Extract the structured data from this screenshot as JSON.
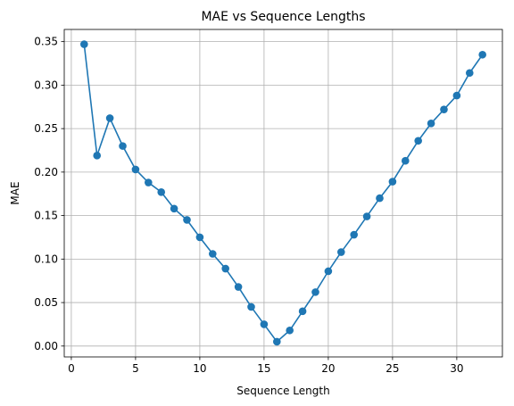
{
  "chart_data": {
    "type": "line",
    "title": "MAE vs Sequence Lengths",
    "xlabel": "Sequence Length",
    "ylabel": "MAE",
    "xlim": [
      -0.55,
      33.55
    ],
    "ylim": [
      -0.0125,
      0.364
    ],
    "xticks": [
      0,
      5,
      10,
      15,
      20,
      25,
      30
    ],
    "yticks": [
      0.0,
      0.05,
      0.1,
      0.15,
      0.2,
      0.25,
      0.3,
      0.35
    ],
    "ytick_labels": [
      "0.00",
      "0.05",
      "0.10",
      "0.15",
      "0.20",
      "0.25",
      "0.30",
      "0.35"
    ],
    "grid": true,
    "marker": "circle",
    "color": "#1f77b4",
    "x": [
      1,
      2,
      3,
      4,
      5,
      6,
      7,
      8,
      9,
      10,
      11,
      12,
      13,
      14,
      15,
      16,
      17,
      18,
      19,
      20,
      21,
      22,
      23,
      24,
      25,
      26,
      27,
      28,
      29,
      30,
      31,
      32
    ],
    "values": [
      0.347,
      0.219,
      0.262,
      0.23,
      0.203,
      0.188,
      0.177,
      0.158,
      0.145,
      0.125,
      0.106,
      0.089,
      0.068,
      0.045,
      0.025,
      0.005,
      0.018,
      0.04,
      0.062,
      0.086,
      0.108,
      0.128,
      0.149,
      0.17,
      0.189,
      0.213,
      0.236,
      0.256,
      0.272,
      0.288,
      0.314,
      0.335
    ]
  }
}
